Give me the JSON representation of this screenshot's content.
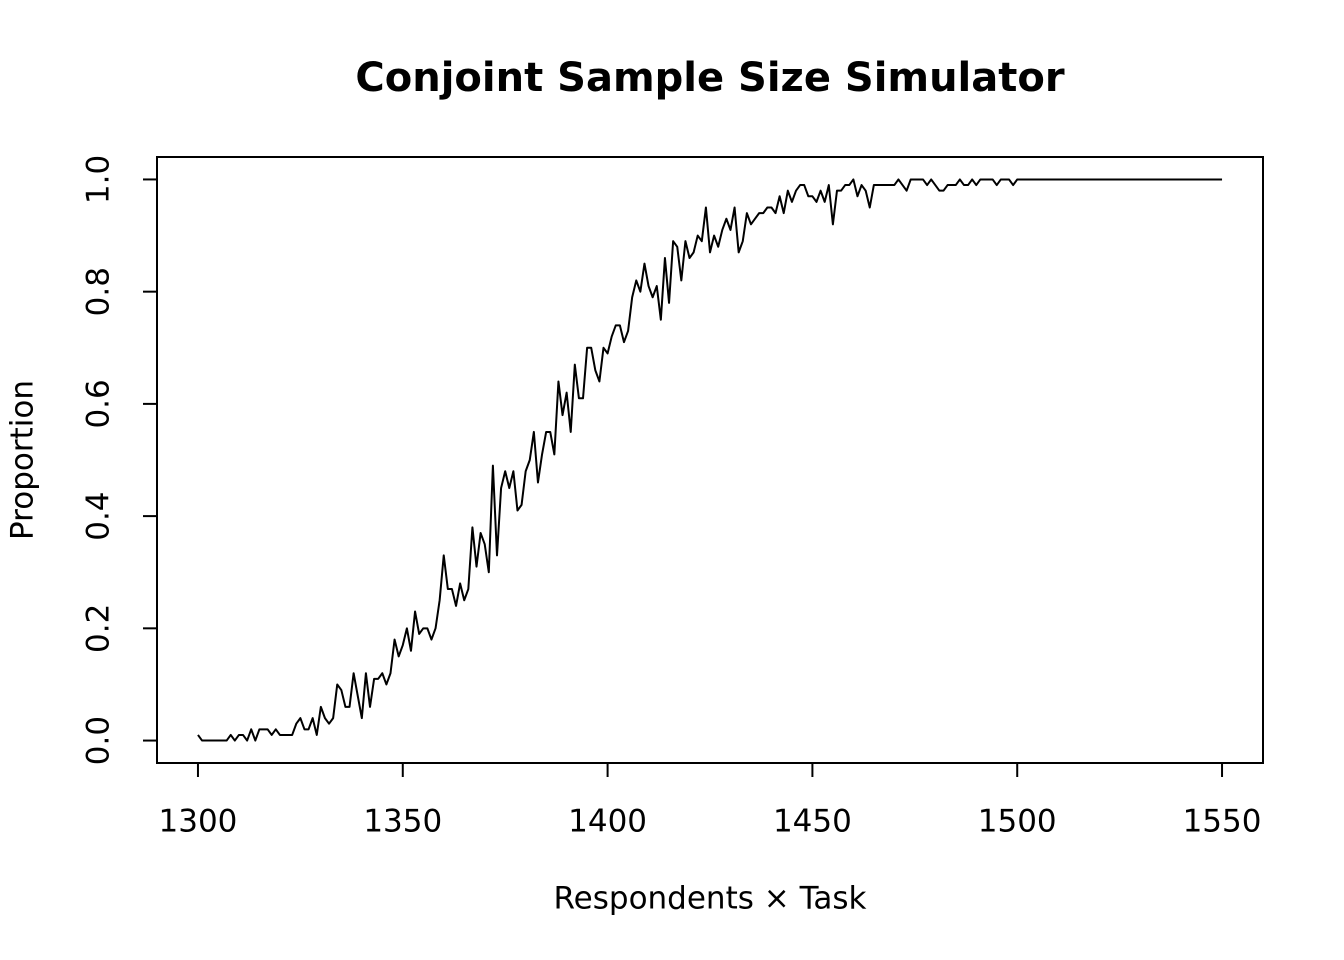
{
  "chart_data": {
    "type": "line",
    "title": "Conjoint Sample Size Simulator",
    "x_label": "Respondents × Task",
    "y_label": "Proportion",
    "x": [
      1300,
      1301,
      1302,
      1303,
      1304,
      1305,
      1306,
      1307,
      1308,
      1309,
      1310,
      1311,
      1312,
      1313,
      1314,
      1315,
      1316,
      1317,
      1318,
      1319,
      1320,
      1321,
      1322,
      1323,
      1324,
      1325,
      1326,
      1327,
      1328,
      1329,
      1330,
      1331,
      1332,
      1333,
      1334,
      1335,
      1336,
      1337,
      1338,
      1339,
      1340,
      1341,
      1342,
      1343,
      1344,
      1345,
      1346,
      1347,
      1348,
      1349,
      1350,
      1351,
      1352,
      1353,
      1354,
      1355,
      1356,
      1357,
      1358,
      1359,
      1360,
      1361,
      1362,
      1363,
      1364,
      1365,
      1366,
      1367,
      1368,
      1369,
      1370,
      1371,
      1372,
      1373,
      1374,
      1375,
      1376,
      1377,
      1378,
      1379,
      1380,
      1381,
      1382,
      1383,
      1384,
      1385,
      1386,
      1387,
      1388,
      1389,
      1390,
      1391,
      1392,
      1393,
      1394,
      1395,
      1396,
      1397,
      1398,
      1399,
      1400,
      1401,
      1402,
      1403,
      1404,
      1405,
      1406,
      1407,
      1408,
      1409,
      1410,
      1411,
      1412,
      1413,
      1414,
      1415,
      1416,
      1417,
      1418,
      1419,
      1420,
      1421,
      1422,
      1423,
      1424,
      1425,
      1426,
      1427,
      1428,
      1429,
      1430,
      1431,
      1432,
      1433,
      1434,
      1435,
      1436,
      1437,
      1438,
      1439,
      1440,
      1441,
      1442,
      1443,
      1444,
      1445,
      1446,
      1447,
      1448,
      1449,
      1450,
      1451,
      1452,
      1453,
      1454,
      1455,
      1456,
      1457,
      1458,
      1459,
      1460,
      1461,
      1462,
      1463,
      1464,
      1465,
      1466,
      1467,
      1468,
      1469,
      1470,
      1471,
      1472,
      1473,
      1474,
      1475,
      1476,
      1477,
      1478,
      1479,
      1480,
      1481,
      1482,
      1483,
      1484,
      1485,
      1486,
      1487,
      1488,
      1489,
      1490,
      1491,
      1492,
      1493,
      1494,
      1495,
      1496,
      1497,
      1498,
      1499,
      1500,
      1501,
      1502,
      1503,
      1504,
      1505,
      1506,
      1507,
      1508,
      1509,
      1510,
      1511,
      1512,
      1513,
      1514,
      1515,
      1516,
      1517,
      1518,
      1519,
      1520,
      1521,
      1522,
      1523,
      1524,
      1525,
      1526,
      1527,
      1528,
      1529,
      1530,
      1531,
      1532,
      1533,
      1534,
      1535,
      1536,
      1537,
      1538,
      1539,
      1540,
      1541,
      1542,
      1543,
      1544,
      1545,
      1546,
      1547,
      1548,
      1549,
      1550
    ],
    "series": [
      {
        "color": "#000000",
        "values": [
          0.01,
          0,
          0,
          0,
          0,
          0,
          0,
          0,
          0.01,
          0,
          0.01,
          0.01,
          0,
          0.02,
          0,
          0.02,
          0.02,
          0.02,
          0.01,
          0.02,
          0.01,
          0.01,
          0.01,
          0.01,
          0.03,
          0.04,
          0.02,
          0.02,
          0.04,
          0.01,
          0.06,
          0.04,
          0.03,
          0.04,
          0.1,
          0.09,
          0.06,
          0.06,
          0.12,
          0.08,
          0.04,
          0.12,
          0.06,
          0.11,
          0.11,
          0.12,
          0.1,
          0.12,
          0.18,
          0.15,
          0.17,
          0.2,
          0.16,
          0.23,
          0.19,
          0.2,
          0.2,
          0.18,
          0.2,
          0.25,
          0.33,
          0.27,
          0.27,
          0.24,
          0.28,
          0.25,
          0.27,
          0.38,
          0.31,
          0.37,
          0.35,
          0.3,
          0.49,
          0.33,
          0.45,
          0.48,
          0.45,
          0.48,
          0.41,
          0.42,
          0.48,
          0.5,
          0.55,
          0.46,
          0.51,
          0.55,
          0.55,
          0.51,
          0.64,
          0.58,
          0.62,
          0.55,
          0.67,
          0.61,
          0.61,
          0.7,
          0.7,
          0.66,
          0.64,
          0.7,
          0.69,
          0.72,
          0.74,
          0.74,
          0.71,
          0.73,
          0.79,
          0.82,
          0.8,
          0.85,
          0.81,
          0.79,
          0.81,
          0.75,
          0.86,
          0.78,
          0.89,
          0.88,
          0.82,
          0.89,
          0.86,
          0.87,
          0.9,
          0.89,
          0.95,
          0.87,
          0.9,
          0.88,
          0.91,
          0.93,
          0.91,
          0.95,
          0.87,
          0.89,
          0.94,
          0.92,
          0.93,
          0.94,
          0.94,
          0.95,
          0.95,
          0.94,
          0.97,
          0.94,
          0.98,
          0.96,
          0.98,
          0.99,
          0.99,
          0.97,
          0.97,
          0.96,
          0.98,
          0.96,
          0.99,
          0.92,
          0.98,
          0.98,
          0.99,
          0.99,
          1,
          0.97,
          0.99,
          0.98,
          0.95,
          0.99,
          0.99,
          0.99,
          0.99,
          0.99,
          0.99,
          1,
          0.99,
          0.98,
          1,
          1,
          1,
          1,
          0.99,
          1,
          0.99,
          0.98,
          0.98,
          0.99,
          0.99,
          0.99,
          1,
          0.99,
          0.99,
          1,
          0.99,
          1,
          1,
          1,
          1,
          0.99,
          1,
          1,
          1,
          0.99,
          1,
          1,
          1,
          1,
          1,
          1,
          1,
          1,
          1,
          1,
          1,
          1,
          1,
          1,
          1,
          1,
          1,
          1,
          1,
          1,
          1,
          1,
          1,
          1,
          1,
          1,
          1,
          1,
          1,
          1,
          1,
          1,
          1,
          1,
          1,
          1,
          1,
          1,
          1,
          1,
          1,
          1,
          1,
          1,
          1,
          1,
          1,
          1,
          1,
          1,
          1
        ]
      }
    ],
    "xlim": [
      1290,
      1560
    ],
    "ylim": [
      -0.04,
      1.04
    ],
    "xticks": [
      1300,
      1350,
      1400,
      1450,
      1500,
      1550
    ],
    "yticks": [
      {
        "value": 0,
        "label": "0.0"
      },
      0.2,
      0.4,
      0.6,
      0.8,
      {
        "value": 1,
        "label": "1.0"
      }
    ]
  }
}
